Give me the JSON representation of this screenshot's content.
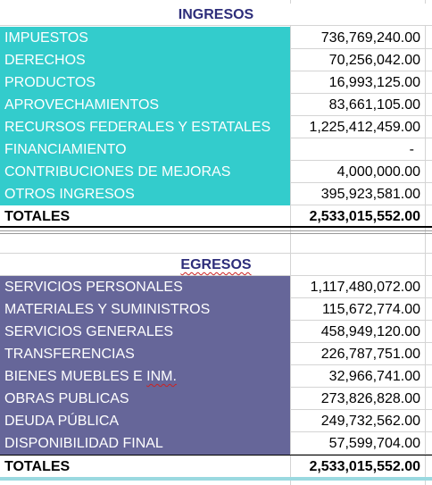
{
  "ingresos": {
    "title": "INGRESOS",
    "fill_color": "#33cccc",
    "rows": [
      {
        "label": "IMPUESTOS",
        "value": "736,769,240.00"
      },
      {
        "label": "DERECHOS",
        "value": "70,256,042.00"
      },
      {
        "label": "PRODUCTOS",
        "value": "16,993,125.00"
      },
      {
        "label": "APROVECHAMIENTOS",
        "value": "83,661,105.00"
      },
      {
        "label": "RECURSOS FEDERALES Y ESTATALES",
        "value": "1,225,412,459.00"
      },
      {
        "label": "FINANCIAMIENTO",
        "value": "-"
      },
      {
        "label": "CONTRIBUCIONES DE MEJORAS",
        "value": "4,000,000.00"
      },
      {
        "label": "OTROS INGRESOS",
        "value": "395,923,581.00"
      }
    ],
    "total_label": "TOTALES",
    "total_value": "2,533,015,552.00"
  },
  "egresos": {
    "title": "EGRESOS",
    "fill_color": "#666699",
    "rows": [
      {
        "label": "SERVICIOS PERSONALES",
        "value": "1,117,480,072.00"
      },
      {
        "label": "MATERIALES Y SUMINISTROS",
        "value": "115,672,774.00"
      },
      {
        "label": "SERVICIOS GENERALES",
        "value": "458,949,120.00"
      },
      {
        "label": "TRANSFERENCIAS",
        "value": "226,787,751.00"
      },
      {
        "label_pre": "BIENES MUEBLES E ",
        "label_err": "INM.",
        "value": "32,966,741.00"
      },
      {
        "label": "OBRAS PUBLICAS",
        "value": "273,826,828.00"
      },
      {
        "label": "DEUDA PÚBLICA",
        "value": "249,732,562.00"
      },
      {
        "label": "DISPONIBILIDAD FINAL",
        "value": "57,599,704.00"
      }
    ],
    "total_label": "TOTALES",
    "total_value": "2,533,015,552.00"
  }
}
